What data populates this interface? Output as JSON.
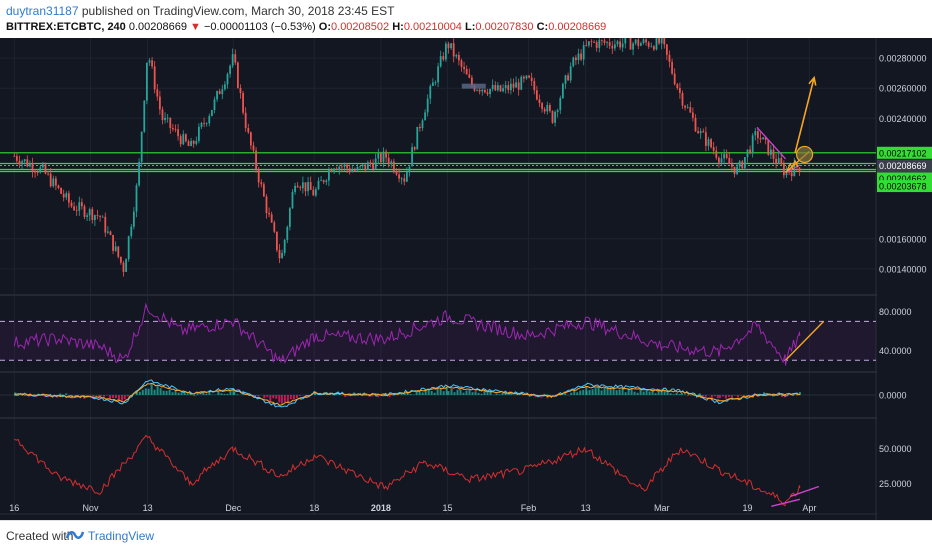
{
  "header": {
    "username": "duytran31187",
    "published": "published on TradingView.com, March 30, 2018 23:45 EST",
    "symbol": "BITTREX:ETCBTC, 240",
    "last": "0.00208669",
    "change_arrow": "▼",
    "change": "−0.00001103 (−0.53%)",
    "o_label": "O:",
    "o_value": "0.00208502",
    "h_label": "H:",
    "h_value": "0.00210004",
    "l_label": "L:",
    "l_value": "0.00207830",
    "c_label": "C:",
    "c_value": "0.00208669"
  },
  "footer": {
    "created_with": "Created with",
    "brand": "TradingView"
  },
  "colors": {
    "background": "#131722",
    "up": "#26a69a",
    "down": "#ef5350",
    "rsi": "#9c27b0",
    "adx": "#d32f2f",
    "level_line": "#33dd33",
    "arrow": "#f5a623",
    "channel": "#cc44cc"
  },
  "chart_data": [
    {
      "type": "candlestick",
      "symbol": "BITTREX:ETCBTC",
      "interval": "240",
      "x_ticks": [
        "16",
        "Nov",
        "13",
        "Dec",
        "18",
        "2018",
        "15",
        "Feb",
        "13",
        "Mar",
        "19",
        "Apr"
      ],
      "y_ticks": [
        "0.00280000",
        "0.00260000",
        "0.00240000",
        "0.00160000",
        "0.00140000"
      ],
      "ylim": [
        0.00124,
        0.00292
      ],
      "price_labels": [
        "0.00217102",
        "0.00208669",
        "03:14:22",
        "0.00204662",
        "0.00203678"
      ],
      "horizontal_levels": [
        0.00217102,
        0.0021,
        0.00208669,
        0.00206,
        0.00204662
      ],
      "close_path": [
        {
          "x": "Oct 16",
          "y": 0.00215
        },
        {
          "x": "Oct 22",
          "y": 0.00205
        },
        {
          "x": "Oct 28",
          "y": 0.00182
        },
        {
          "x": "Nov 3",
          "y": 0.00175
        },
        {
          "x": "Nov 8",
          "y": 0.0014
        },
        {
          "x": "Nov 11",
          "y": 0.002
        },
        {
          "x": "Nov 13",
          "y": 0.00285
        },
        {
          "x": "Nov 16",
          "y": 0.0024
        },
        {
          "x": "Nov 22",
          "y": 0.0022
        },
        {
          "x": "Nov 27",
          "y": 0.0025
        },
        {
          "x": "Dec 1",
          "y": 0.0028
        },
        {
          "x": "Dec 4",
          "y": 0.0023
        },
        {
          "x": "Dec 8",
          "y": 0.0018
        },
        {
          "x": "Dec 11",
          "y": 0.00145
        },
        {
          "x": "Dec 14",
          "y": 0.002
        },
        {
          "x": "Dec 18",
          "y": 0.0019
        },
        {
          "x": "Dec 22",
          "y": 0.0021
        },
        {
          "x": "Dec 27",
          "y": 0.00205
        },
        {
          "x": "Jan 2",
          "y": 0.00215
        },
        {
          "x": "Jan 6",
          "y": 0.002
        },
        {
          "x": "Jan 10",
          "y": 0.00245
        },
        {
          "x": "Jan 15",
          "y": 0.0029
        },
        {
          "x": "Jan 20",
          "y": 0.00262
        },
        {
          "x": "Jan 26",
          "y": 0.00258
        },
        {
          "x": "Feb 1",
          "y": 0.00265
        },
        {
          "x": "Feb 6",
          "y": 0.0024
        },
        {
          "x": "Feb 10",
          "y": 0.00275
        },
        {
          "x": "Feb 14",
          "y": 0.0029
        },
        {
          "x": "Mar 1",
          "y": 0.0029
        },
        {
          "x": "Mar 5",
          "y": 0.00255
        },
        {
          "x": "Mar 9",
          "y": 0.0023
        },
        {
          "x": "Mar 13",
          "y": 0.00215
        },
        {
          "x": "Mar 17",
          "y": 0.00205
        },
        {
          "x": "Mar 21",
          "y": 0.0023
        },
        {
          "x": "Mar 25",
          "y": 0.00212
        },
        {
          "x": "Mar 27",
          "y": 0.00204
        },
        {
          "x": "Mar 30",
          "y": 0.00208669
        }
      ],
      "annotations": [
        {
          "kind": "arrow",
          "from": {
            "x": "Mar 29",
            "y": 0.00217
          },
          "to": {
            "x": "Apr 2",
            "y": 0.00267
          }
        },
        {
          "kind": "trendline",
          "from": {
            "x": "Mar 27",
            "y": 0.00204
          },
          "to": {
            "x": "Apr 1",
            "y": 0.00218
          }
        },
        {
          "kind": "circle",
          "at": {
            "x": "Mar 31",
            "y": 0.00216
          }
        }
      ]
    },
    {
      "type": "line",
      "name": "RSI",
      "y_ticks": [
        "80.0000",
        "40.0000"
      ],
      "ylim": [
        20,
        95
      ],
      "bands": [
        70,
        30
      ],
      "x": [
        "Oct 16",
        "Oct 25",
        "Nov 3",
        "Nov 8",
        "Nov 13",
        "Nov 20",
        "Dec 1",
        "Dec 11",
        "Dec 18",
        "Jan 2",
        "Jan 15",
        "Feb 1",
        "Feb 13",
        "Mar 1",
        "Mar 13",
        "Mar 21",
        "Mar 27",
        "Mar 30"
      ],
      "values": [
        48,
        52,
        44,
        30,
        85,
        60,
        70,
        28,
        55,
        52,
        75,
        55,
        70,
        45,
        38,
        65,
        30,
        55
      ]
    },
    {
      "type": "line",
      "name": "MACD",
      "y_ticks": [
        "0.0000"
      ],
      "ylim": [
        -1,
        1
      ],
      "x": [
        "Oct 16",
        "Nov 3",
        "Nov 8",
        "Nov 13",
        "Nov 22",
        "Dec 1",
        "Dec 11",
        "Dec 18",
        "Jan 2",
        "Jan 15",
        "Feb 6",
        "Feb 13",
        "Mar 5",
        "Mar 13",
        "Mar 21",
        "Mar 30"
      ],
      "values": [
        0.05,
        -0.15,
        -0.4,
        0.7,
        0.1,
        0.3,
        -0.6,
        0.1,
        0.0,
        0.45,
        -0.1,
        0.5,
        0.2,
        -0.35,
        0.0,
        0.05
      ]
    },
    {
      "type": "line",
      "name": "ADX",
      "y_ticks": [
        "50.0000",
        "25.0000"
      ],
      "ylim": [
        5,
        70
      ],
      "x": [
        "Oct 16",
        "Oct 25",
        "Nov 3",
        "Nov 13",
        "Nov 22",
        "Dec 1",
        "Dec 11",
        "Dec 18",
        "Jan 2",
        "Jan 10",
        "Jan 20",
        "Feb 1",
        "Feb 13",
        "Feb 25",
        "Mar 5",
        "Mar 13",
        "Mar 21",
        "Mar 27",
        "Mar 30"
      ],
      "values": [
        58,
        30,
        20,
        58,
        25,
        50,
        30,
        45,
        22,
        40,
        28,
        35,
        50,
        20,
        50,
        35,
        22,
        12,
        22
      ]
    }
  ]
}
